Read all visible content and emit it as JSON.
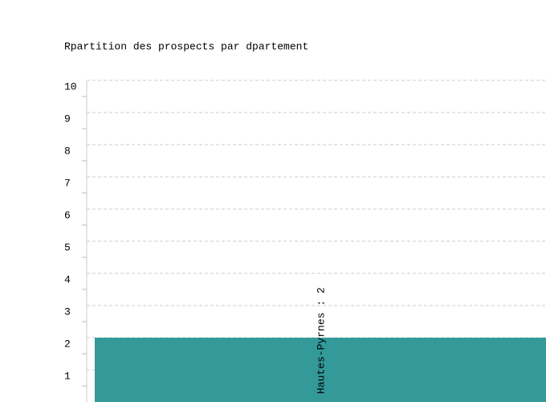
{
  "chart_data": {
    "type": "bar",
    "title": "Rpartition des prospects par dpartement",
    "values": [
      2
    ],
    "value_labels": [
      "Hautes-Pyrnes : 2"
    ],
    "color": "#339999",
    "ylim": [
      0,
      10
    ],
    "yticks": [
      1,
      2,
      3,
      4,
      5,
      6,
      7,
      8,
      9,
      10
    ],
    "grid": true
  }
}
